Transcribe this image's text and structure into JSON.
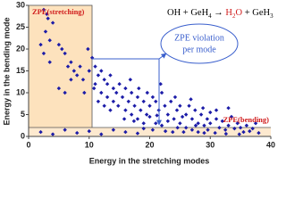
{
  "chart_data": {
    "type": "scatter",
    "x_label": "Energy in the stretching modes",
    "y_label": "Energy in the bending mode",
    "annotations": {
      "stretching": "ZPE(stretching)",
      "bending": "ZPE(bending)",
      "violation": [
        "ZPE violation",
        "per mode"
      ],
      "reaction": [
        "OH + GeH",
        "4",
        " → ",
        "H",
        "2",
        "O",
        " + GeH",
        "3"
      ]
    },
    "color": "#1c1ca8",
    "xlim": [
      0,
      40
    ],
    "ylim": [
      0,
      30
    ],
    "xticks": [
      0,
      10,
      20,
      30,
      40
    ],
    "yticks": [
      0,
      5,
      10,
      15,
      20,
      25,
      30
    ],
    "x": [
      2.5,
      3,
      3.2,
      2.8,
      2,
      3.5,
      2.5,
      3.5,
      4,
      5,
      5.5,
      6,
      6.5,
      7,
      7.5,
      8,
      8.5,
      9,
      9.2,
      6,
      10,
      9.8,
      5,
      7,
      10.5,
      11,
      11.5,
      12,
      12.5,
      13,
      13.5,
      14,
      14.5,
      11,
      12,
      13,
      14,
      15,
      15.5,
      11.5,
      12.5,
      13.5,
      10.8,
      14.8,
      16,
      16.5,
      17,
      17.5,
      18,
      18.5,
      19,
      19.5,
      16,
      17,
      18,
      19,
      20,
      20.5,
      16.8,
      18.2,
      19.6,
      17.4,
      15.8,
      20,
      21,
      21.5,
      22,
      22.5,
      23,
      23.5,
      24,
      24.5,
      21,
      22,
      23,
      25,
      25,
      21.8,
      24.2,
      22.6,
      20.5,
      23.8,
      24.6,
      21.2,
      26,
      26.5,
      27,
      27.5,
      28,
      28.5,
      29,
      29.5,
      26,
      27,
      28,
      29,
      30,
      26.8,
      28.8,
      25.6,
      27.6,
      29.6,
      30,
      25.4,
      31,
      31.5,
      32,
      32.5,
      33,
      33.5,
      34,
      34.5,
      35,
      35.5,
      36,
      36.5,
      37,
      38,
      31,
      33,
      30.8,
      32.6,
      34.8,
      37.5,
      2,
      4,
      6,
      8,
      10,
      12,
      14,
      16,
      18,
      19
    ],
    "values": [
      29,
      28,
      27,
      24,
      21,
      22,
      19,
      17,
      26,
      21,
      20,
      19,
      16,
      17,
      15,
      14,
      16,
      13,
      10,
      10,
      15,
      20,
      11,
      13,
      18,
      16,
      14,
      15,
      13,
      12,
      14,
      11,
      10,
      12,
      10,
      9,
      8,
      12,
      9,
      8,
      7,
      6,
      11,
      7,
      11,
      8,
      10,
      7,
      9,
      6,
      8,
      5,
      6,
      5,
      4,
      3,
      7,
      9,
      13,
      11,
      10,
      3.5,
      4,
      4.5,
      8,
      6,
      10,
      7,
      5,
      8,
      4,
      6,
      3,
      2.5,
      3.5,
      7,
      3,
      12,
      9,
      1.2,
      1.5,
      1,
      2,
      4.8,
      5,
      7,
      4,
      6,
      3,
      5,
      2.5,
      4,
      2,
      1.5,
      1,
      0.8,
      3,
      8.5,
      6.5,
      1,
      2.5,
      1.5,
      5.5,
      4.5,
      4,
      2,
      3.5,
      1.5,
      2.5,
      4.5,
      1.8,
      3,
      2,
      1,
      2.5,
      1.2,
      1.8,
      0.8,
      6,
      6.5,
      0.8,
      0.6,
      0.5,
      3,
      1,
      0.5,
      1.5,
      0.8,
      1.2,
      0.5,
      1.5,
      1,
      0.7,
      1.8
    ]
  }
}
